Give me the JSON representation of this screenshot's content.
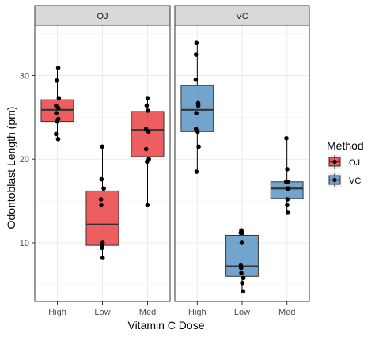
{
  "chart_data": {
    "type": "box",
    "xlabel": "Vitamin C Dose",
    "ylabel": "Odontoblast Length (pm)",
    "ylim": [
      3,
      36
    ],
    "yticks": [
      10,
      20,
      30
    ],
    "categories": [
      "High",
      "Low",
      "Med"
    ],
    "legend": {
      "title": "Method",
      "position": "right",
      "items": [
        {
          "label": "OJ",
          "color": "#E41A1C"
        },
        {
          "label": "VC",
          "color": "#377EB8"
        }
      ]
    },
    "grid": true,
    "panels": [
      {
        "label": "OJ",
        "color": "#E41A1C",
        "boxes": [
          {
            "category": "High",
            "whisker_low": 22.4,
            "q1": 24.5,
            "median": 25.9,
            "q3": 27.1,
            "whisker_high": 30.9,
            "points": [
              22.4,
              23.0,
              24.5,
              24.8,
              25.5,
              26.1,
              26.4,
              27.3,
              29.4,
              30.9
            ]
          },
          {
            "category": "Low",
            "whisker_low": 8.2,
            "q1": 9.7,
            "median": 12.2,
            "q3": 16.2,
            "whisker_high": 21.5,
            "points": [
              8.2,
              9.4,
              9.7,
              10.0,
              14.5,
              15.2,
              16.5,
              17.6,
              21.5
            ]
          },
          {
            "category": "Med",
            "whisker_low": 14.5,
            "q1": 20.3,
            "median": 23.5,
            "q3": 25.7,
            "whisker_high": 27.3,
            "points": [
              14.5,
              19.7,
              20.0,
              21.2,
              23.3,
              23.6,
              25.8,
              26.4,
              27.3
            ]
          }
        ]
      },
      {
        "label": "VC",
        "color": "#377EB8",
        "boxes": [
          {
            "category": "High",
            "whisker_low": 18.5,
            "q1": 23.3,
            "median": 25.9,
            "q3": 28.8,
            "whisker_high": 33.9,
            "points": [
              18.5,
              21.5,
              23.3,
              23.6,
              25.5,
              26.4,
              26.7,
              29.5,
              32.5,
              33.9
            ]
          },
          {
            "category": "Low",
            "whisker_low": 4.2,
            "q1": 6.0,
            "median": 7.2,
            "q3": 10.9,
            "whisker_high": 11.5,
            "points": [
              4.2,
              5.2,
              5.8,
              6.4,
              7.0,
              7.3,
              10.0,
              11.2,
              11.2,
              11.5
            ]
          },
          {
            "category": "Med",
            "whisker_low": 13.6,
            "q1": 15.3,
            "median": 16.5,
            "q3": 17.3,
            "whisker_high": 22.5,
            "points": [
              13.6,
              14.5,
              15.2,
              16.5,
              16.5,
              17.3,
              17.3,
              18.8,
              22.5
            ]
          }
        ]
      }
    ]
  }
}
